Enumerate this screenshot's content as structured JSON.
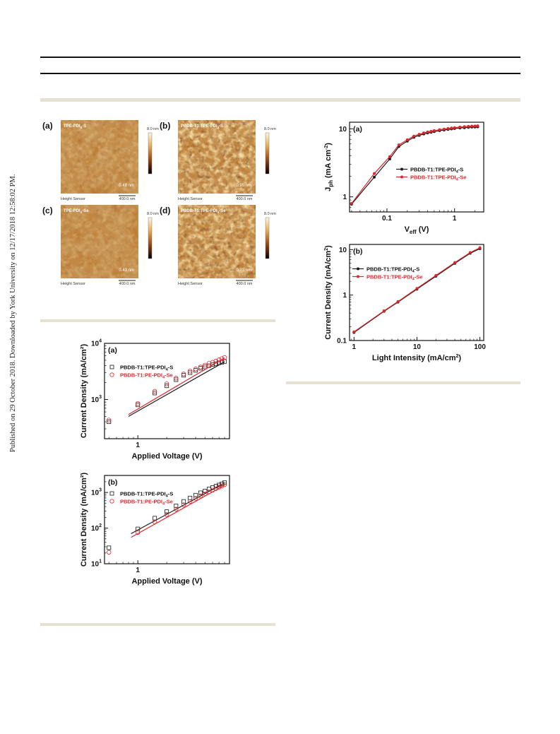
{
  "side_note": "Published on 29 October 2018. Downloaded by York University on 12/17/2018 12:58:02 PM.",
  "afm": {
    "panels": [
      {
        "tag": "(a)",
        "title": "TPE-PDI4-S",
        "rms": "0.49 nm",
        "scale_top": "8.0 nm",
        "sensor": "Height Sensor",
        "bar": "400.0 nm",
        "rough": 0.35
      },
      {
        "tag": "(b)",
        "title": "PBDB-T1:TPE-PDI4-S",
        "rms": "0.95 nm",
        "scale_top": "8.0 nm",
        "sensor": "Height Sensor",
        "bar": "400.0 nm",
        "rough": 0.95
      },
      {
        "tag": "(c)",
        "title": "TPE-PDI4-Se",
        "rms": "0.43 nm",
        "scale_top": "8.0 nm",
        "sensor": "Height Sensor",
        "bar": "400.0 nm",
        "rough": 0.3
      },
      {
        "tag": "(d)",
        "title": "PBDB-T1:TPE-PDI4-Se",
        "rms": "0.93 nm",
        "scale_top": "8.0 nm",
        "sensor": "Height Sensor",
        "bar": "400.0 nm",
        "rough": 0.9
      }
    ]
  },
  "colors": {
    "black": "#1a1a1a",
    "red": "#e0262c",
    "band": "#e6e2d3"
  },
  "chart_data": [
    {
      "id": "sclc-a",
      "type": "scatter",
      "panel_label": "(a)",
      "xlabel": "Applied Voltage (V)",
      "ylabel": "Current Density (mA/cm²)",
      "xscale": "log",
      "yscale": "log",
      "xlim": [
        0.45,
        9
      ],
      "ylim": [
        200,
        10000
      ],
      "xticks": [
        {
          "v": 1,
          "label": "1"
        }
      ],
      "yticks": [
        {
          "v": 1000,
          "label": "10",
          "exp": "3"
        },
        {
          "v": 10000,
          "label": "10",
          "exp": "4"
        }
      ],
      "legend_position": "top-left",
      "series": [
        {
          "name": "PBDB-T1:TPE-PDI4-S",
          "marker": "square",
          "color": "#1a1a1a",
          "x": [
            0.5,
            1.0,
            1.5,
            2.0,
            2.5,
            3.0,
            3.5,
            4.0,
            4.5,
            5.0,
            5.5,
            6.0,
            6.5,
            7.0,
            7.5,
            8.0
          ],
          "y": [
            400,
            800,
            1300,
            1750,
            2250,
            2700,
            3000,
            3300,
            3600,
            3800,
            4000,
            4200,
            4350,
            4500,
            4600,
            4750
          ],
          "fit": {
            "x": [
              0.8,
              8.0
            ],
            "y": [
              500,
              4700
            ]
          }
        },
        {
          "name": "PBDB-T1:PE-PDI4-Se",
          "marker": "circle",
          "color": "#e0262c",
          "x": [
            0.5,
            1.0,
            1.5,
            2.0,
            2.5,
            3.0,
            3.5,
            4.0,
            4.5,
            5.0,
            5.5,
            6.0,
            6.5,
            7.0,
            7.5,
            8.0
          ],
          "y": [
            430,
            850,
            1400,
            1900,
            2400,
            2850,
            3200,
            3500,
            3800,
            4100,
            4400,
            4600,
            4850,
            5100,
            5350,
            5600
          ],
          "fit": {
            "x": [
              0.8,
              8.0
            ],
            "y": [
              540,
              5500
            ]
          }
        }
      ]
    },
    {
      "id": "sclc-b",
      "type": "scatter",
      "panel_label": "(b)",
      "xlabel": "Applied Voltage (V)",
      "ylabel": "Current Density (mA/cm²)",
      "xscale": "log",
      "yscale": "log",
      "xlim": [
        0.45,
        9
      ],
      "ylim": [
        10,
        3000
      ],
      "xticks": [
        {
          "v": 1,
          "label": "1"
        }
      ],
      "yticks": [
        {
          "v": 10,
          "label": "10",
          "exp": "1"
        },
        {
          "v": 100,
          "label": "10",
          "exp": "2"
        },
        {
          "v": 1000,
          "label": "10",
          "exp": "3"
        }
      ],
      "legend_position": "top-left",
      "series": [
        {
          "name": "PBDB-T1:TPE-PDI4-S",
          "marker": "square",
          "color": "#1a1a1a",
          "x": [
            0.5,
            1.0,
            1.5,
            2.0,
            2.5,
            3.0,
            3.5,
            4.0,
            4.5,
            5.0,
            5.5,
            6.0,
            6.5,
            7.0,
            7.5,
            8.0
          ],
          "y": [
            28,
            95,
            190,
            290,
            420,
            560,
            700,
            840,
            980,
            1100,
            1250,
            1380,
            1500,
            1620,
            1750,
            1880
          ],
          "fit": {
            "x": [
              0.85,
              8.0
            ],
            "y": [
              70,
              1850
            ]
          }
        },
        {
          "name": "PBDB-T1:PE-PDI4-Se",
          "marker": "circle",
          "color": "#e0262c",
          "x": [
            0.5,
            1.0,
            1.5,
            2.0,
            2.5,
            3.0,
            3.5,
            4.0,
            4.5,
            5.0,
            5.5,
            6.0,
            6.5,
            7.0,
            7.5,
            8.0
          ],
          "y": [
            21,
            75,
            150,
            240,
            340,
            450,
            560,
            680,
            800,
            920,
            1040,
            1160,
            1280,
            1400,
            1520,
            1650
          ],
          "fit": {
            "x": [
              0.85,
              8.0
            ],
            "y": [
              55,
              1600
            ]
          }
        }
      ]
    },
    {
      "id": "jph-a",
      "type": "line",
      "panel_label": "(a)",
      "xlabel": "V",
      "xlabel_sub": "eff",
      "xlabel_unit": " (V)",
      "ylabel": "J",
      "ylabel_sub": "ph",
      "ylabel_unit": " (mA cm",
      "ylabel_exp": "-2",
      "ylabel_close": ")",
      "xscale": "log",
      "yscale": "log",
      "xlim": [
        0.028,
        2.7
      ],
      "ylim": [
        0.6,
        12.5
      ],
      "xticks": [
        {
          "v": 0.1,
          "label": "0.1"
        },
        {
          "v": 1,
          "label": "1"
        }
      ],
      "yticks": [
        {
          "v": 1,
          "label": "1"
        },
        {
          "v": 10,
          "label": "10"
        }
      ],
      "legend_position": "center-right",
      "series": [
        {
          "name": "PBDB-T1:TPE-PDI4-S",
          "marker": "dot",
          "color": "#1a1a1a",
          "x": [
            0.03,
            0.065,
            0.11,
            0.15,
            0.2,
            0.25,
            0.3,
            0.35,
            0.4,
            0.45,
            0.5,
            0.6,
            0.7,
            0.8,
            0.9,
            1.0,
            1.2,
            1.4,
            1.6,
            1.8,
            2.0,
            2.2
          ],
          "y": [
            0.78,
            1.95,
            3.6,
            5.5,
            6.6,
            7.5,
            8.0,
            8.4,
            8.7,
            8.9,
            9.1,
            9.4,
            9.6,
            9.8,
            9.95,
            10.1,
            10.3,
            10.4,
            10.5,
            10.6,
            10.65,
            10.7
          ]
        },
        {
          "name": "PBDB-T1:TPE-PDI4-Se",
          "marker": "dot",
          "color": "#e0262c",
          "x": [
            0.03,
            0.065,
            0.11,
            0.15,
            0.2,
            0.25,
            0.3,
            0.35,
            0.4,
            0.45,
            0.5,
            0.6,
            0.7,
            0.8,
            0.9,
            1.0,
            1.2,
            1.4,
            1.6,
            1.8,
            2.0,
            2.2
          ],
          "y": [
            0.8,
            2.2,
            3.9,
            5.8,
            6.9,
            7.8,
            8.3,
            8.7,
            9.0,
            9.2,
            9.4,
            9.7,
            9.9,
            10.1,
            10.25,
            10.4,
            10.6,
            10.75,
            10.85,
            10.95,
            11.0,
            11.05
          ]
        }
      ]
    },
    {
      "id": "jsc-b",
      "type": "line",
      "panel_label": "(b)",
      "xlabel": "Light Intensity (mA/cm",
      "xlabel_exp": "2",
      "xlabel_close": ")",
      "ylabel": "Current Density (mA/cm",
      "ylabel_exp": "2",
      "ylabel_close": ")",
      "xscale": "log",
      "yscale": "log",
      "xlim": [
        0.85,
        115
      ],
      "ylim": [
        0.1,
        13
      ],
      "xticks": [
        {
          "v": 1,
          "label": "1"
        },
        {
          "v": 10,
          "label": "10"
        },
        {
          "v": 100,
          "label": "100"
        }
      ],
      "yticks": [
        {
          "v": 0.1,
          "label": "0.1"
        },
        {
          "v": 1,
          "label": "1"
        },
        {
          "v": 10,
          "label": "10"
        }
      ],
      "legend_position": "top-left",
      "series": [
        {
          "name": "PBDB-T1:TPE-PDI4-S",
          "marker": "dot",
          "color": "#1a1a1a",
          "x": [
            1,
            3,
            5,
            10,
            20,
            40,
            70,
            100
          ],
          "y": [
            0.15,
            0.44,
            0.7,
            1.35,
            2.6,
            5.0,
            8.3,
            10.5
          ]
        },
        {
          "name": "PBDB-T1:TPE-PDI4-Se",
          "marker": "dot",
          "color": "#e0262c",
          "x": [
            1,
            3,
            5,
            10,
            20,
            40,
            70,
            100
          ],
          "y": [
            0.155,
            0.45,
            0.72,
            1.4,
            2.7,
            5.2,
            8.6,
            11.0
          ]
        }
      ]
    }
  ]
}
